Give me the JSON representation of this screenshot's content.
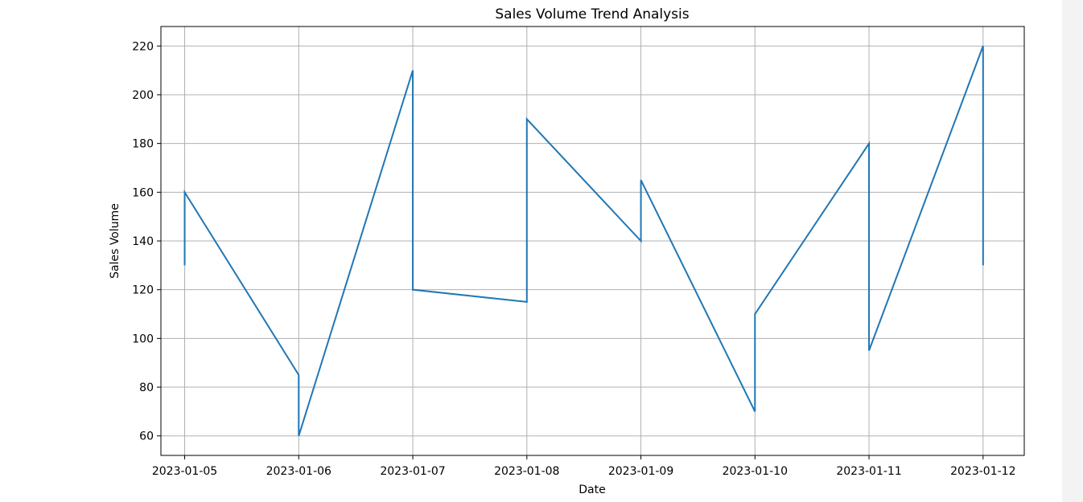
{
  "chart_data": {
    "type": "line",
    "title": "Sales Volume Trend Analysis",
    "xlabel": "Date",
    "ylabel": "Sales Volume",
    "x_ticks": [
      "2023-01-05",
      "2023-01-06",
      "2023-01-07",
      "2023-01-08",
      "2023-01-09",
      "2023-01-10",
      "2023-01-11",
      "2023-01-12"
    ],
    "y_ticks": [
      60,
      80,
      100,
      120,
      140,
      160,
      180,
      200,
      220
    ],
    "ylim": [
      52,
      228
    ],
    "xlim": [
      "2023-01-04 19:00",
      "2023-01-12 08:40"
    ],
    "grid": true,
    "series": [
      {
        "color": "#1f77b4",
        "points": [
          {
            "x": "2023-01-05",
            "y": 130
          },
          {
            "x": "2023-01-05",
            "y": 160
          },
          {
            "x": "2023-01-06",
            "y": 85
          },
          {
            "x": "2023-01-06",
            "y": 60
          },
          {
            "x": "2023-01-07",
            "y": 210
          },
          {
            "x": "2023-01-07",
            "y": 120
          },
          {
            "x": "2023-01-08",
            "y": 115
          },
          {
            "x": "2023-01-08",
            "y": 190
          },
          {
            "x": "2023-01-09",
            "y": 140
          },
          {
            "x": "2023-01-09",
            "y": 165
          },
          {
            "x": "2023-01-10",
            "y": 70
          },
          {
            "x": "2023-01-10",
            "y": 110
          },
          {
            "x": "2023-01-11",
            "y": 180
          },
          {
            "x": "2023-01-11",
            "y": 95
          },
          {
            "x": "2023-01-12",
            "y": 220
          },
          {
            "x": "2023-01-12",
            "y": 130
          }
        ]
      }
    ]
  }
}
